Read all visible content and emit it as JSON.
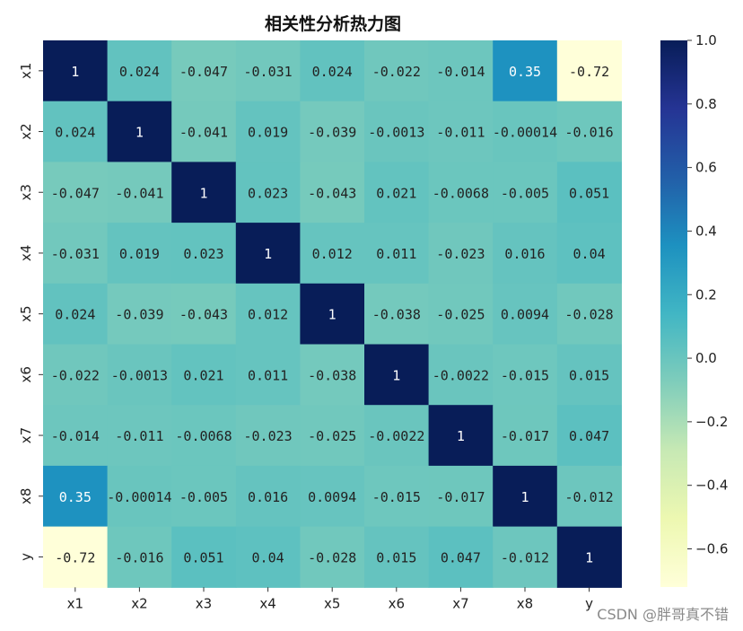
{
  "chart_data": {
    "type": "heatmap",
    "title": "相关性分析热力图",
    "row_labels": [
      "x1",
      "x2",
      "x3",
      "x4",
      "x5",
      "x6",
      "x7",
      "x8",
      "y"
    ],
    "col_labels": [
      "x1",
      "x2",
      "x3",
      "x4",
      "x5",
      "x6",
      "x7",
      "x8",
      "y"
    ],
    "values": [
      [
        1,
        0.024,
        -0.047,
        -0.031,
        0.024,
        -0.022,
        -0.014,
        0.35,
        -0.72
      ],
      [
        0.024,
        1,
        -0.041,
        0.019,
        -0.039,
        -0.0013,
        -0.011,
        -0.00014,
        -0.016
      ],
      [
        -0.047,
        -0.041,
        1,
        0.023,
        -0.043,
        0.021,
        -0.0068,
        -0.005,
        0.051
      ],
      [
        -0.031,
        0.019,
        0.023,
        1,
        0.012,
        0.011,
        -0.023,
        0.016,
        0.04
      ],
      [
        0.024,
        -0.039,
        -0.043,
        0.012,
        1,
        -0.038,
        -0.025,
        0.0094,
        -0.028
      ],
      [
        -0.022,
        -0.0013,
        0.021,
        0.011,
        -0.038,
        1,
        -0.0022,
        -0.015,
        0.015
      ],
      [
        -0.014,
        -0.011,
        -0.0068,
        -0.023,
        -0.025,
        -0.0022,
        1,
        -0.017,
        0.047
      ],
      [
        0.35,
        -0.00014,
        -0.005,
        0.016,
        0.0094,
        -0.015,
        -0.017,
        1,
        -0.012
      ],
      [
        -0.72,
        -0.016,
        0.051,
        0.04,
        -0.028,
        0.015,
        0.047,
        -0.012,
        1
      ]
    ],
    "annotations": [
      [
        "1",
        "0.024",
        "-0.047",
        "-0.031",
        "0.024",
        "-0.022",
        "-0.014",
        "0.35",
        "-0.72"
      ],
      [
        "0.024",
        "1",
        "-0.041",
        "0.019",
        "-0.039",
        "-0.0013",
        "-0.011",
        "-0.00014",
        "-0.016"
      ],
      [
        "-0.047",
        "-0.041",
        "1",
        "0.023",
        "-0.043",
        "0.021",
        "-0.0068",
        "-0.005",
        "0.051"
      ],
      [
        "-0.031",
        "0.019",
        "0.023",
        "1",
        "0.012",
        "0.011",
        "-0.023",
        "0.016",
        "0.04"
      ],
      [
        "0.024",
        "-0.039",
        "-0.043",
        "0.012",
        "1",
        "-0.038",
        "-0.025",
        "0.0094",
        "-0.028"
      ],
      [
        "-0.022",
        "-0.0013",
        "0.021",
        "0.011",
        "-0.038",
        "1",
        "-0.0022",
        "-0.015",
        "0.015"
      ],
      [
        "-0.014",
        "-0.011",
        "-0.0068",
        "-0.023",
        "-0.025",
        "-0.0022",
        "1",
        "-0.017",
        "0.047"
      ],
      [
        "0.35",
        "-0.00014",
        "-0.005",
        "0.016",
        "0.0094",
        "-0.015",
        "-0.017",
        "1",
        "-0.012"
      ],
      [
        "-0.72",
        "-0.016",
        "0.051",
        "0.04",
        "-0.028",
        "0.015",
        "0.047",
        "-0.012",
        "1"
      ]
    ],
    "colorbar": {
      "colormap": "YlGnBu",
      "range": [
        -0.72,
        1.0
      ],
      "ticks": [
        1.0,
        0.8,
        0.6,
        0.4,
        0.2,
        0.0,
        -0.2,
        -0.4,
        -0.6
      ],
      "tick_labels": [
        "1.0",
        "0.8",
        "0.6",
        "0.4",
        "0.2",
        "0.0",
        "−0.2",
        "−0.4",
        "−0.6"
      ]
    },
    "xlabel": "",
    "ylabel": ""
  },
  "watermark": "CSDN @胖哥真不错"
}
